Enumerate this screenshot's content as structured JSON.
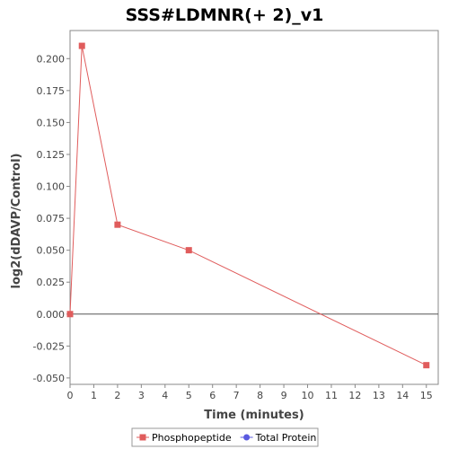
{
  "chart_data": {
    "type": "line",
    "title": "SSS#LDMNR(+ 2)_v1",
    "xlabel": "Time (minutes)",
    "ylabel": "log2(dDAVP/Control)",
    "xlim": [
      0,
      15.5
    ],
    "ylim": [
      -0.055,
      0.222
    ],
    "xticks": [
      0,
      1,
      2,
      3,
      4,
      5,
      6,
      7,
      8,
      9,
      10,
      11,
      12,
      13,
      14,
      15
    ],
    "xtick_labels": [
      "0",
      "1",
      "2",
      "3",
      "4",
      "5",
      "6",
      "7",
      "8",
      "9",
      "10",
      "11",
      "12",
      "13",
      "14",
      "15"
    ],
    "yticks": [
      -0.05,
      -0.025,
      0,
      0.025,
      0.05,
      0.075,
      0.1,
      0.125,
      0.15,
      0.175,
      0.2
    ],
    "ytick_labels": [
      "-0.050",
      "-0.025",
      "0.000",
      "0.025",
      "0.050",
      "0.075",
      "0.100",
      "0.125",
      "0.150",
      "0.175",
      "0.200"
    ],
    "zero_line": true,
    "grid": false,
    "legend_position": "bottom-center",
    "series": [
      {
        "name": "Phosphopeptide",
        "color": "#e05c5c",
        "marker": "square",
        "x": [
          0,
          0.5,
          2,
          5,
          15
        ],
        "y": [
          0.0,
          0.21,
          0.07,
          0.05,
          -0.04
        ]
      },
      {
        "name": "Total Protein",
        "color": "#5a5ae0",
        "marker": "circle",
        "x": [],
        "y": []
      }
    ]
  }
}
